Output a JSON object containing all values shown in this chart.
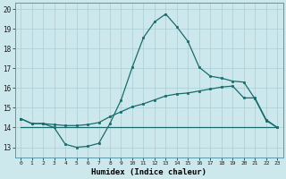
{
  "xlabel": "Humidex (Indice chaleur)",
  "bg_color": "#cde8ec",
  "line_color": "#1a6b6b",
  "grid_color": "#aacdd4",
  "xlim": [
    -0.5,
    23.5
  ],
  "ylim": [
    12.5,
    20.3
  ],
  "xticks": [
    0,
    1,
    2,
    3,
    4,
    5,
    6,
    7,
    8,
    9,
    10,
    11,
    12,
    13,
    14,
    15,
    16,
    17,
    18,
    19,
    20,
    21,
    22,
    23
  ],
  "yticks": [
    13,
    14,
    15,
    16,
    17,
    18,
    19,
    20
  ],
  "line1_x": [
    0,
    1,
    2,
    3,
    4,
    5,
    6,
    7,
    8,
    9,
    10,
    11,
    12,
    13,
    14,
    15,
    16,
    17,
    18,
    19,
    20,
    21,
    22,
    23
  ],
  "line1_y": [
    14.45,
    14.2,
    14.2,
    14.0,
    13.15,
    13.0,
    13.05,
    13.2,
    14.2,
    15.4,
    17.05,
    18.55,
    19.35,
    19.75,
    19.1,
    18.35,
    17.05,
    16.6,
    16.5,
    16.35,
    16.3,
    15.45,
    14.35,
    14.0
  ],
  "line2_x": [
    0,
    1,
    2,
    3,
    4,
    5,
    6,
    7,
    8,
    9,
    10,
    11,
    12,
    13,
    14,
    15,
    16,
    17,
    18,
    19,
    20,
    21,
    22,
    23
  ],
  "line2_y": [
    14.0,
    14.0,
    14.0,
    14.0,
    14.0,
    14.0,
    14.0,
    14.0,
    14.0,
    14.0,
    14.0,
    14.0,
    14.0,
    14.0,
    14.0,
    14.0,
    14.0,
    14.0,
    14.0,
    14.0,
    14.0,
    14.0,
    14.0,
    14.0
  ],
  "line3_x": [
    0,
    1,
    2,
    3,
    4,
    5,
    6,
    7,
    8,
    9,
    10,
    11,
    12,
    13,
    14,
    15,
    16,
    17,
    18,
    19,
    20,
    21,
    22,
    23
  ],
  "line3_y": [
    14.45,
    14.2,
    14.2,
    14.15,
    14.1,
    14.1,
    14.15,
    14.25,
    14.55,
    14.8,
    15.05,
    15.2,
    15.4,
    15.6,
    15.7,
    15.75,
    15.85,
    15.95,
    16.05,
    16.1,
    15.5,
    15.5,
    14.4,
    14.0
  ]
}
